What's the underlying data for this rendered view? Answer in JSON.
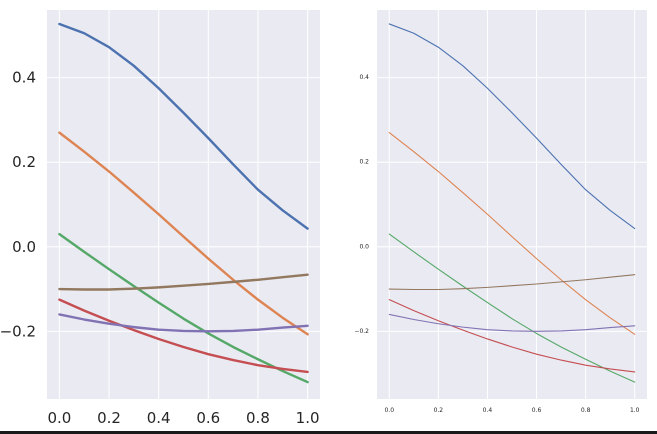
{
  "chart_data": [
    {
      "type": "line",
      "title": "",
      "xlabel": "",
      "ylabel": "",
      "xlim": [
        -0.05,
        1.05
      ],
      "ylim": [
        -0.36,
        0.56
      ],
      "grid": true,
      "x_ticks": [
        0.0,
        0.2,
        0.4,
        0.6,
        0.8,
        1.0
      ],
      "x_tick_labels": [
        "0.0",
        "0.2",
        "0.4",
        "0.6",
        "0.8",
        "1.0"
      ],
      "y_ticks": [
        -0.2,
        0.0,
        0.2,
        0.4
      ],
      "y_tick_labels": [
        "−0.2",
        "0.0",
        "0.2",
        "0.4"
      ],
      "x": [
        0.0,
        0.1,
        0.2,
        0.3,
        0.4,
        0.5,
        0.6,
        0.7,
        0.8,
        0.9,
        1.0
      ],
      "series": [
        {
          "color": "#4c72b0",
          "values": [
            0.527,
            0.505,
            0.472,
            0.428,
            0.375,
            0.317,
            0.257,
            0.195,
            0.135,
            0.086,
            0.043
          ]
        },
        {
          "color": "#dd8452",
          "values": [
            0.27,
            0.225,
            0.178,
            0.128,
            0.077,
            0.024,
            -0.028,
            -0.078,
            -0.125,
            -0.168,
            -0.207
          ]
        },
        {
          "color": "#55a868",
          "values": [
            0.03,
            -0.012,
            -0.053,
            -0.093,
            -0.132,
            -0.17,
            -0.205,
            -0.237,
            -0.266,
            -0.294,
            -0.32
          ]
        },
        {
          "color": "#937860",
          "values": [
            -0.1,
            -0.101,
            -0.101,
            -0.099,
            -0.096,
            -0.092,
            -0.088,
            -0.083,
            -0.078,
            -0.072,
            -0.066
          ]
        },
        {
          "color": "#c44e52",
          "values": [
            -0.125,
            -0.151,
            -0.175,
            -0.197,
            -0.218,
            -0.237,
            -0.254,
            -0.268,
            -0.28,
            -0.289,
            -0.296
          ]
        },
        {
          "color": "#8172b3",
          "values": [
            -0.16,
            -0.172,
            -0.182,
            -0.19,
            -0.196,
            -0.199,
            -0.2,
            -0.199,
            -0.196,
            -0.191,
            -0.187
          ]
        }
      ]
    },
    {
      "type": "line",
      "title": "",
      "xlabel": "",
      "ylabel": "",
      "xlim": [
        -0.05,
        1.05
      ],
      "ylim": [
        -0.36,
        0.56
      ],
      "grid": true,
      "x_ticks": [
        0.0,
        0.2,
        0.4,
        0.6,
        0.8,
        1.0
      ],
      "x_tick_labels": [
        "0.0",
        "0.2",
        "0.4",
        "0.6",
        "0.8",
        "1.0"
      ],
      "y_ticks": [
        -0.2,
        0.0,
        0.2,
        0.4
      ],
      "y_tick_labels": [
        "−0.2",
        "0.0",
        "0.2",
        "0.4"
      ],
      "x": [
        0.0,
        0.1,
        0.2,
        0.3,
        0.4,
        0.5,
        0.6,
        0.7,
        0.8,
        0.9,
        1.0
      ],
      "series": [
        {
          "color": "#4c72b0",
          "values": [
            0.527,
            0.505,
            0.472,
            0.428,
            0.375,
            0.317,
            0.257,
            0.195,
            0.135,
            0.086,
            0.043
          ]
        },
        {
          "color": "#dd8452",
          "values": [
            0.27,
            0.225,
            0.178,
            0.128,
            0.077,
            0.024,
            -0.028,
            -0.078,
            -0.125,
            -0.168,
            -0.207
          ]
        },
        {
          "color": "#55a868",
          "values": [
            0.03,
            -0.012,
            -0.053,
            -0.093,
            -0.132,
            -0.17,
            -0.205,
            -0.237,
            -0.266,
            -0.294,
            -0.32
          ]
        },
        {
          "color": "#937860",
          "values": [
            -0.1,
            -0.101,
            -0.101,
            -0.099,
            -0.096,
            -0.092,
            -0.088,
            -0.083,
            -0.078,
            -0.072,
            -0.066
          ]
        },
        {
          "color": "#c44e52",
          "values": [
            -0.125,
            -0.151,
            -0.175,
            -0.197,
            -0.218,
            -0.237,
            -0.254,
            -0.268,
            -0.28,
            -0.289,
            -0.296
          ]
        },
        {
          "color": "#8172b3",
          "values": [
            -0.16,
            -0.172,
            -0.182,
            -0.19,
            -0.196,
            -0.199,
            -0.2,
            -0.199,
            -0.196,
            -0.191,
            -0.187
          ]
        }
      ]
    }
  ],
  "style": {
    "plot_background": "#eaeaf2",
    "grid_color": "#ffffff",
    "text_color": "#262626"
  }
}
